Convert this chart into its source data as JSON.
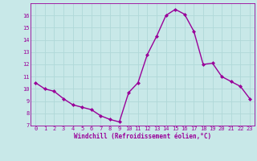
{
  "x": [
    0,
    1,
    2,
    3,
    4,
    5,
    6,
    7,
    8,
    9,
    10,
    11,
    12,
    13,
    14,
    15,
    16,
    17,
    18,
    19,
    20,
    21,
    22,
    23
  ],
  "y": [
    10.5,
    10.0,
    9.8,
    9.2,
    8.7,
    8.5,
    8.3,
    7.8,
    7.5,
    7.3,
    9.7,
    10.5,
    12.8,
    14.3,
    16.0,
    16.5,
    16.1,
    14.7,
    12.0,
    12.1,
    11.0,
    10.6,
    10.2,
    9.2
  ],
  "line_color": "#990099",
  "marker": "D",
  "marker_size": 2,
  "bg_color": "#c8e8e8",
  "grid_color": "#b0d8d8",
  "xlabel": "Windchill (Refroidissement éolien,°C)",
  "xlabel_color": "#990099",
  "tick_color": "#990099",
  "ylim": [
    7,
    17
  ],
  "xlim": [
    -0.5,
    23.5
  ],
  "yticks": [
    7,
    8,
    9,
    10,
    11,
    12,
    13,
    14,
    15,
    16
  ],
  "xticks": [
    0,
    1,
    2,
    3,
    4,
    5,
    6,
    7,
    8,
    9,
    10,
    11,
    12,
    13,
    14,
    15,
    16,
    17,
    18,
    19,
    20,
    21,
    22,
    23
  ],
  "font_family": "monospace",
  "tick_fontsize": 5,
  "xlabel_fontsize": 5.5,
  "linewidth": 1.0,
  "spine_color": "#990099"
}
